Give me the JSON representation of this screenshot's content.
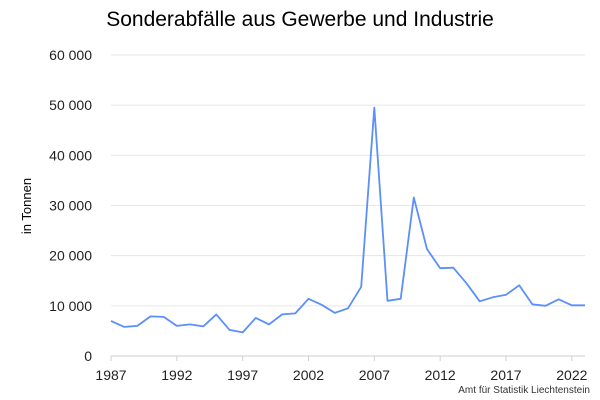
{
  "chart_data": {
    "type": "line",
    "title": "Sonderabfälle aus Gewerbe und Industrie",
    "ylabel": "in Tonnen",
    "xlabel": "",
    "source": "Amt für Statistik Liechtenstein",
    "ylim": [
      0,
      60000
    ],
    "xlim": [
      1987,
      2023
    ],
    "yticks": [
      0,
      10000,
      20000,
      30000,
      40000,
      50000,
      60000
    ],
    "ytick_labels": [
      "0",
      "10 000",
      "20 000",
      "30 000",
      "40 000",
      "50 000",
      "60 000"
    ],
    "xticks": [
      1987,
      1992,
      1997,
      2002,
      2007,
      2012,
      2017,
      2022
    ],
    "xtick_labels": [
      "1987",
      "1992",
      "1997",
      "2002",
      "2007",
      "2012",
      "2017",
      "2022"
    ],
    "grid": true,
    "line_color": "#5b8ff9",
    "x": [
      1987,
      1988,
      1989,
      1990,
      1991,
      1992,
      1993,
      1994,
      1995,
      1996,
      1997,
      1998,
      1999,
      2000,
      2001,
      2002,
      2003,
      2004,
      2005,
      2006,
      2007,
      2008,
      2009,
      2010,
      2011,
      2012,
      2013,
      2014,
      2015,
      2016,
      2017,
      2018,
      2019,
      2020,
      2021,
      2022,
      2023
    ],
    "series": [
      {
        "values": [
          7000,
          5800,
          6000,
          7900,
          7800,
          6000,
          6300,
          5900,
          8300,
          5200,
          4700,
          7600,
          6300,
          8300,
          8500,
          11400,
          10200,
          8600,
          9500,
          13800,
          49500,
          11000,
          11400,
          31600,
          21300,
          17500,
          17600,
          14500,
          10900,
          11700,
          12200,
          14100,
          10300,
          10000,
          11300,
          10100,
          10100
        ]
      }
    ]
  }
}
